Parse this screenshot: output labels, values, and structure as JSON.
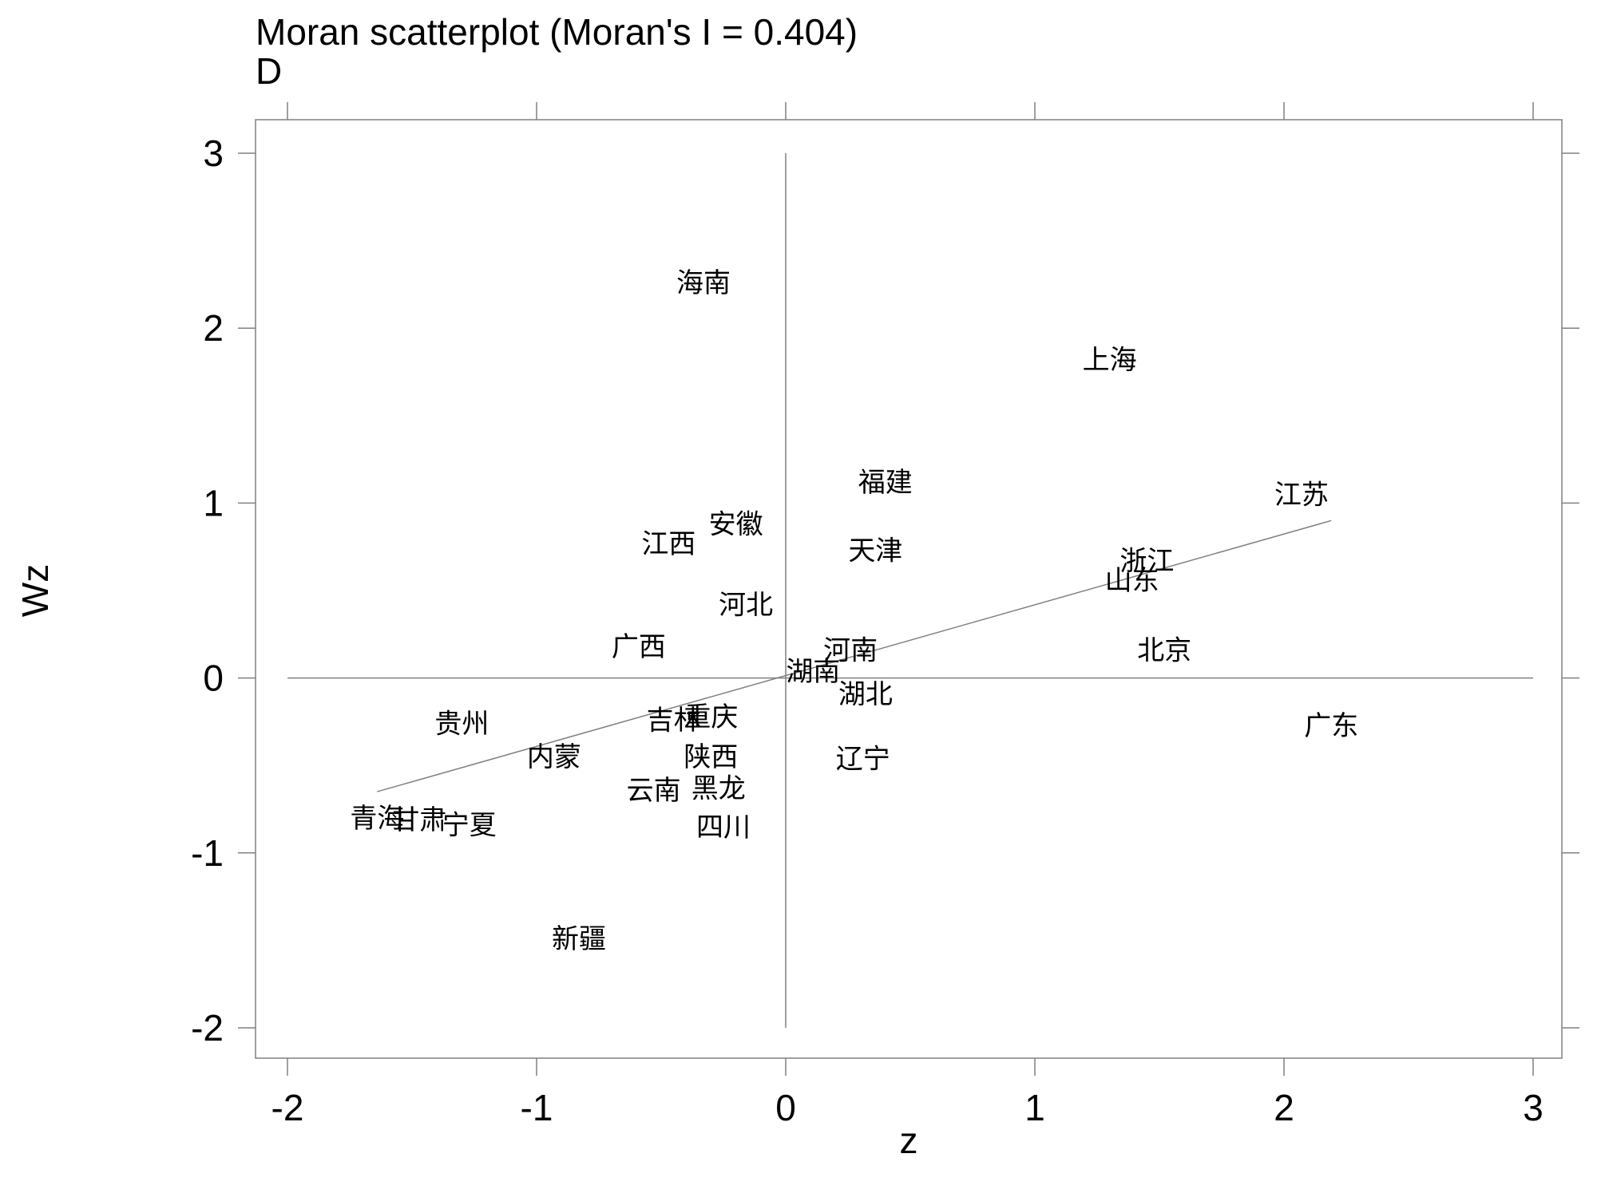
{
  "chart_data": {
    "type": "scatter",
    "title": "Moran scatterplot (Moran's I = 0.404)",
    "subtitle": "D",
    "xlabel": "z",
    "ylabel": "Wz",
    "xlim": [
      -2.1,
      3.1
    ],
    "ylim": [
      -2.2,
      3.2
    ],
    "xticks": [
      -2,
      -1,
      0,
      1,
      2,
      3
    ],
    "yticks": [
      3,
      2,
      1,
      0,
      -1,
      -2
    ],
    "xtick_labels": [
      "-2",
      "-1",
      "0",
      "1",
      "2",
      "3"
    ],
    "ytick_labels": [
      "3",
      "2",
      "1",
      "0",
      "-1",
      "-2"
    ],
    "grid": false,
    "reference_lines": {
      "x0": {
        "ymin": -2,
        "ymax": 3
      },
      "y0": {
        "xmin": -2,
        "xmax": 3
      }
    },
    "fit_line": {
      "x": [
        -1.64,
        2.19
      ],
      "y": [
        -0.65,
        0.9
      ]
    },
    "points": [
      {
        "label": "海南",
        "x": -0.33,
        "y": 2.26
      },
      {
        "label": "上海",
        "x": 1.3,
        "y": 1.82
      },
      {
        "label": "福建",
        "x": 0.4,
        "y": 1.12
      },
      {
        "label": "江苏",
        "x": 2.07,
        "y": 1.05
      },
      {
        "label": "安徽",
        "x": -0.2,
        "y": 0.88
      },
      {
        "label": "江西",
        "x": -0.47,
        "y": 0.77
      },
      {
        "label": "天津",
        "x": 0.36,
        "y": 0.73
      },
      {
        "label": "浙江",
        "x": 1.45,
        "y": 0.67
      },
      {
        "label": "山东",
        "x": 1.39,
        "y": 0.56
      },
      {
        "label": "河北",
        "x": -0.16,
        "y": 0.42
      },
      {
        "label": "广西",
        "x": -0.59,
        "y": 0.18
      },
      {
        "label": "河南",
        "x": 0.26,
        "y": 0.16
      },
      {
        "label": "北京",
        "x": 1.52,
        "y": 0.16
      },
      {
        "label": "湖南",
        "x": 0.11,
        "y": 0.04
      },
      {
        "label": "湖北",
        "x": 0.32,
        "y": -0.09
      },
      {
        "label": "重庆",
        "x": -0.3,
        "y": -0.22
      },
      {
        "label": "吉林",
        "x": -0.45,
        "y": -0.24
      },
      {
        "label": "贵州",
        "x": -1.3,
        "y": -0.26
      },
      {
        "label": "广东",
        "x": 2.19,
        "y": -0.27
      },
      {
        "label": "内蒙",
        "x": -0.93,
        "y": -0.45
      },
      {
        "label": "陕西",
        "x": -0.3,
        "y": -0.45
      },
      {
        "label": "辽宁",
        "x": 0.31,
        "y": -0.46
      },
      {
        "label": "云南",
        "x": -0.53,
        "y": -0.64
      },
      {
        "label": "黑龙",
        "x": -0.27,
        "y": -0.63
      },
      {
        "label": "青海",
        "x": -1.64,
        "y": -0.8
      },
      {
        "label": "甘肃",
        "x": -1.47,
        "y": -0.81
      },
      {
        "label": "宁夏",
        "x": -1.27,
        "y": -0.84
      },
      {
        "label": "四川",
        "x": -0.25,
        "y": -0.85
      },
      {
        "label": "新疆",
        "x": -0.83,
        "y": -1.49
      }
    ]
  }
}
